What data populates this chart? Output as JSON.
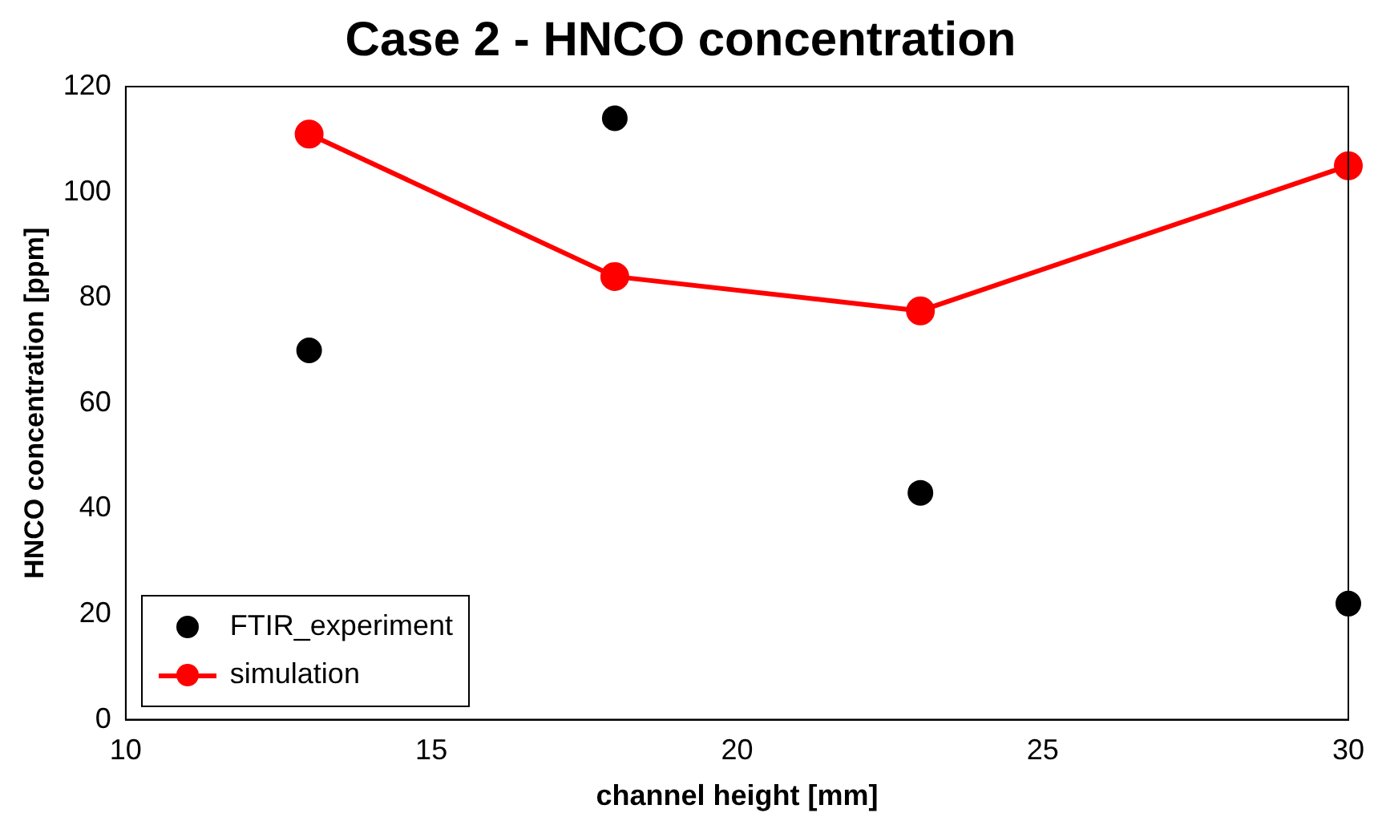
{
  "chart_data": {
    "type": "scatter",
    "title": "Case 2 - HNCO concentration",
    "xlabel": "channel height [mm]",
    "ylabel": "HNCO concentration [ppm]",
    "x": [
      13,
      18,
      23,
      30
    ],
    "series": [
      {
        "name": "FTIR_experiment",
        "color": "#000000",
        "type": "scatter",
        "values": [
          70,
          114,
          43,
          22
        ]
      },
      {
        "name": "simulation",
        "color": "#ff0000",
        "type": "line",
        "values": [
          111,
          84,
          77.5,
          105
        ]
      }
    ],
    "xlim": [
      10,
      30
    ],
    "xticks": [
      10,
      15,
      20,
      25,
      30
    ],
    "ylim": [
      0,
      120
    ],
    "yticks": [
      0,
      20,
      40,
      60,
      80,
      100,
      120
    ],
    "grid": false,
    "legend": "bottom left",
    "marker": "circle",
    "line_style": "solid"
  }
}
